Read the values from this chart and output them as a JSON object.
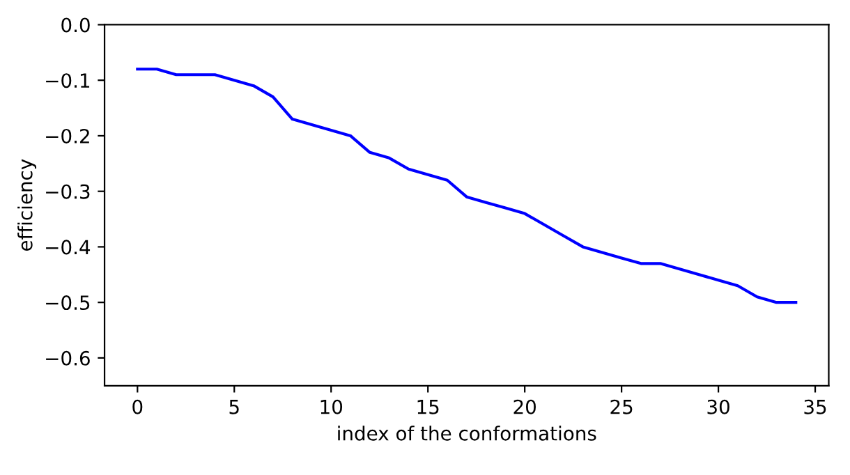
{
  "chart_data": {
    "type": "line",
    "xlabel": "index of the conformations",
    "ylabel": "efficiency",
    "x": [
      0,
      1,
      2,
      3,
      4,
      5,
      6,
      7,
      8,
      9,
      10,
      11,
      12,
      13,
      14,
      15,
      16,
      17,
      18,
      19,
      20,
      21,
      22,
      23,
      24,
      25,
      26,
      27,
      28,
      29,
      30,
      31,
      32,
      33,
      34
    ],
    "series": [
      {
        "color": "#0000ff",
        "values": [
          -0.08,
          -0.08,
          -0.09,
          -0.09,
          -0.09,
          -0.1,
          -0.11,
          -0.13,
          -0.17,
          -0.18,
          -0.19,
          -0.2,
          -0.23,
          -0.24,
          -0.26,
          -0.27,
          -0.28,
          -0.31,
          -0.32,
          -0.33,
          -0.34,
          -0.36,
          -0.38,
          -0.4,
          -0.41,
          -0.42,
          -0.43,
          -0.43,
          -0.44,
          -0.45,
          -0.46,
          -0.47,
          -0.49,
          -0.5,
          -0.5
        ]
      }
    ],
    "xlim": [
      -1.7,
      35.7
    ],
    "xticks": [
      0,
      5,
      10,
      15,
      20,
      25,
      30,
      35
    ],
    "ylim": [
      -0.65,
      0
    ],
    "yticks": [
      {
        "value": -0.6,
        "label": "−0.6"
      },
      {
        "value": -0.5,
        "label": "−0.5"
      },
      {
        "value": -0.4,
        "label": "−0.4"
      },
      {
        "value": -0.3,
        "label": "−0.3"
      },
      {
        "value": -0.2,
        "label": "−0.2"
      },
      {
        "value": -0.1,
        "label": "−0.1"
      },
      {
        "value": 0,
        "label": "0.0"
      }
    ],
    "grid": false
  }
}
